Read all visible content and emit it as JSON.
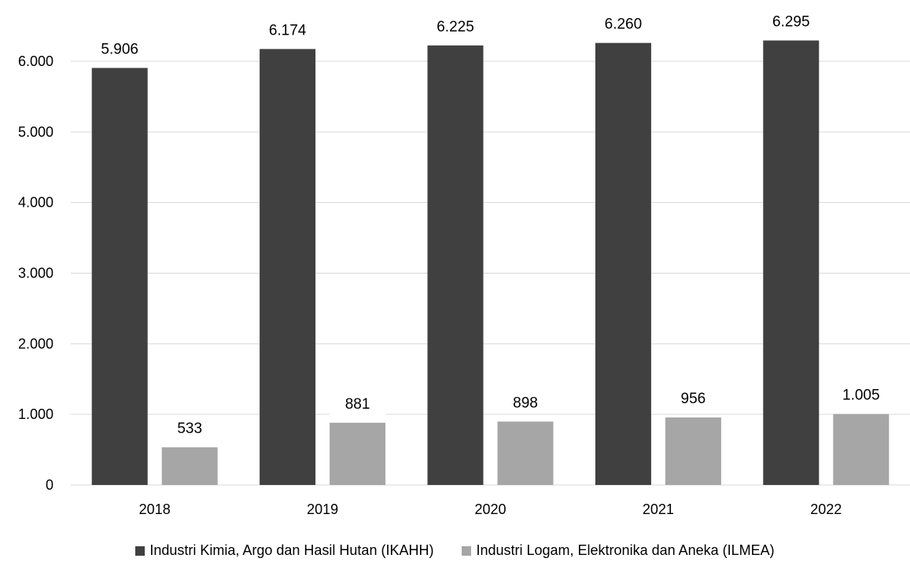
{
  "chart_data": {
    "type": "bar",
    "categories": [
      "2018",
      "2019",
      "2020",
      "2021",
      "2022"
    ],
    "series": [
      {
        "name": "Industri Kimia, Argo dan Hasil Hutan (IKAHH)",
        "values": [
          5906,
          6174,
          6225,
          6260,
          6295
        ],
        "labels": [
          "5.906",
          "6.174",
          "6.225",
          "6.260",
          "6.295"
        ],
        "color": "#404040"
      },
      {
        "name": "Industri Logam, Elektronika dan Aneka (ILMEA)",
        "values": [
          533,
          881,
          898,
          956,
          1005
        ],
        "labels": [
          "533",
          "881",
          "898",
          "956",
          "1.005"
        ],
        "color": "#a6a6a6"
      }
    ],
    "y_ticks": [
      0,
      1000,
      2000,
      3000,
      4000,
      5000,
      6000
    ],
    "y_tick_labels": [
      "0",
      "1.000",
      "2.000",
      "3.000",
      "4.000",
      "5.000",
      "6.000"
    ],
    "ylim": [
      0,
      6000
    ],
    "grid": true,
    "gridline_color": "#d9d9d9",
    "legend_position": "bottom"
  }
}
